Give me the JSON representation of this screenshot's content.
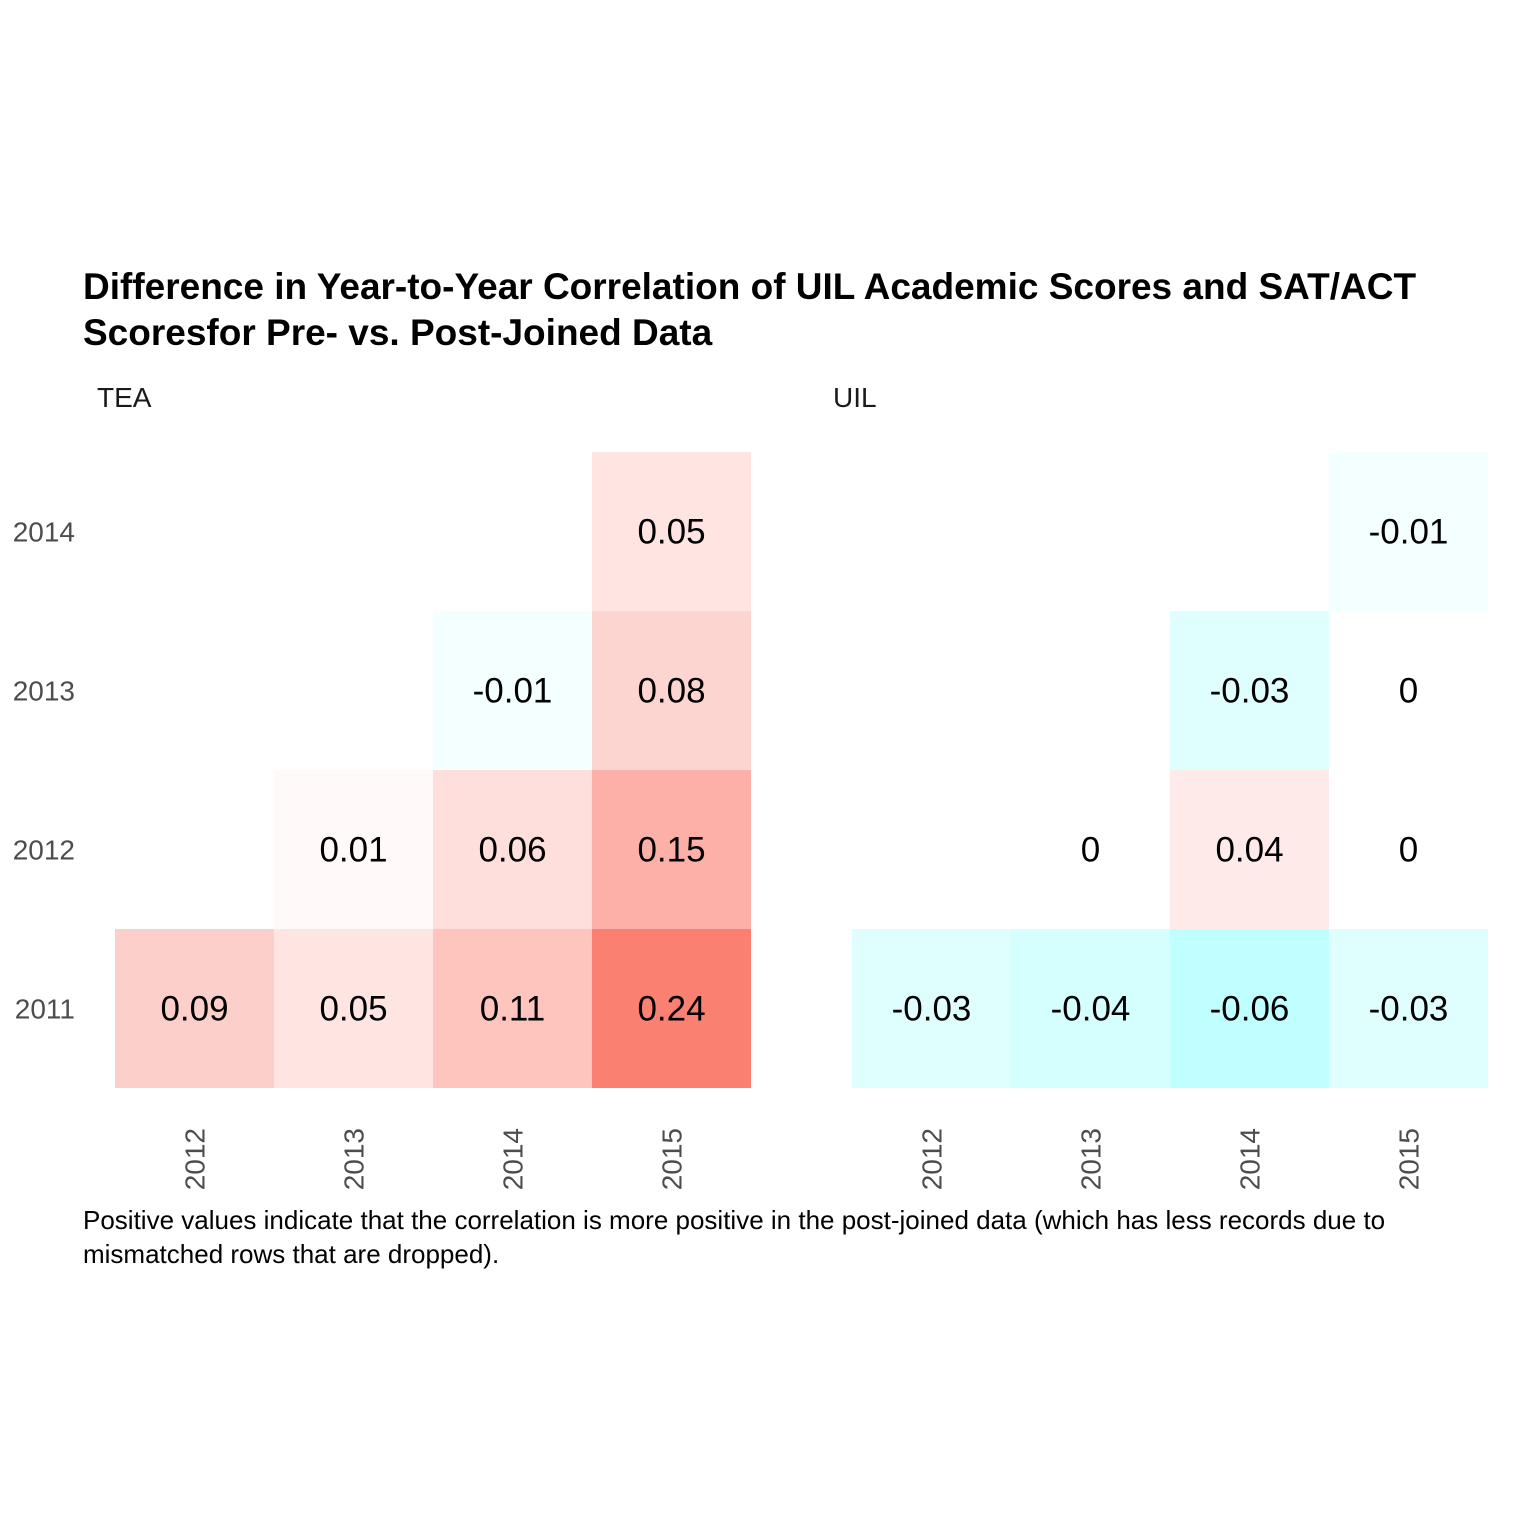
{
  "title": "Difference in Year-to-Year Correlation of UIL Academic Scores and SAT/ACT\nScoresfor Pre- vs. Post-Joined Data",
  "caption": "Positive values indicate that the correlation is more positive in the post-joined data (which has less records due to\nmismatched rows that are dropped).",
  "chart_data": {
    "type": "heatmap",
    "x_categories": [
      "2012",
      "2013",
      "2014",
      "2015"
    ],
    "y_categories": [
      "2011",
      "2012",
      "2013",
      "2014"
    ],
    "legend": "none",
    "grid": false,
    "color_scale": {
      "low": "#00ffff",
      "mid": "#ffffff",
      "high": "#fa8072"
    },
    "panels": [
      {
        "name": "TEA",
        "cells": [
          {
            "x": "2012",
            "y": "2011",
            "value": 0.09,
            "label": "0.09"
          },
          {
            "x": "2013",
            "y": "2011",
            "value": 0.05,
            "label": "0.05"
          },
          {
            "x": "2014",
            "y": "2011",
            "value": 0.11,
            "label": "0.11"
          },
          {
            "x": "2015",
            "y": "2011",
            "value": 0.24,
            "label": "0.24"
          },
          {
            "x": "2013",
            "y": "2012",
            "value": 0.01,
            "label": "0.01"
          },
          {
            "x": "2014",
            "y": "2012",
            "value": 0.06,
            "label": "0.06"
          },
          {
            "x": "2015",
            "y": "2012",
            "value": 0.15,
            "label": "0.15"
          },
          {
            "x": "2014",
            "y": "2013",
            "value": -0.01,
            "label": "-0.01"
          },
          {
            "x": "2015",
            "y": "2013",
            "value": 0.08,
            "label": "0.08"
          },
          {
            "x": "2015",
            "y": "2014",
            "value": 0.05,
            "label": "0.05"
          }
        ]
      },
      {
        "name": "UIL",
        "cells": [
          {
            "x": "2012",
            "y": "2011",
            "value": -0.03,
            "label": "-0.03"
          },
          {
            "x": "2013",
            "y": "2011",
            "value": -0.04,
            "label": "-0.04"
          },
          {
            "x": "2014",
            "y": "2011",
            "value": -0.06,
            "label": "-0.06"
          },
          {
            "x": "2015",
            "y": "2011",
            "value": -0.03,
            "label": "-0.03"
          },
          {
            "x": "2013",
            "y": "2012",
            "value": 0,
            "label": "0"
          },
          {
            "x": "2014",
            "y": "2012",
            "value": 0.04,
            "label": "0.04"
          },
          {
            "x": "2015",
            "y": "2012",
            "value": 0,
            "label": "0"
          },
          {
            "x": "2014",
            "y": "2013",
            "value": -0.03,
            "label": "-0.03"
          },
          {
            "x": "2015",
            "y": "2013",
            "value": 0,
            "label": "0"
          },
          {
            "x": "2015",
            "y": "2014",
            "value": -0.01,
            "label": "-0.01"
          }
        ]
      }
    ]
  }
}
